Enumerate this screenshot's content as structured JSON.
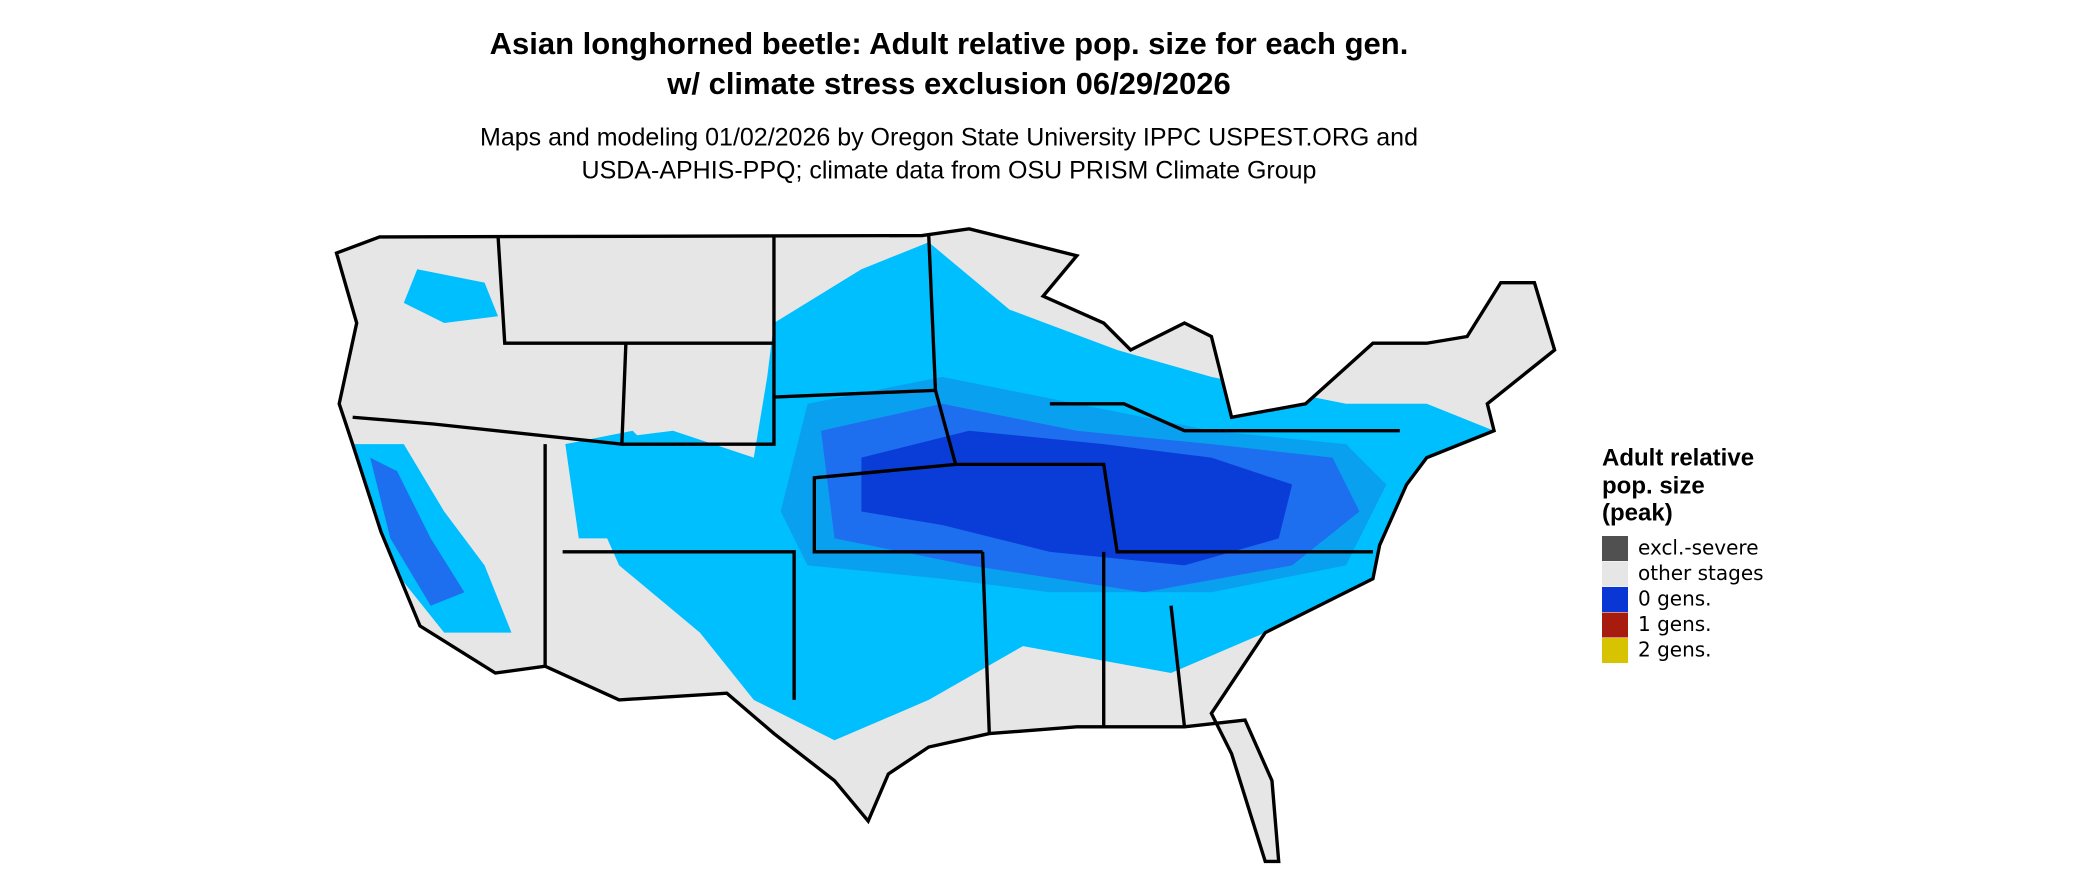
{
  "title": [
    "Asian longhorned beetle: Adult relative pop. size for each gen.",
    "w/ climate stress exclusion 06/29/2026"
  ],
  "subtitle": [
    "Maps and modeling 01/02/2026 by Oregon State University IPPC USPEST.ORG and",
    "USDA-APHIS-PPQ; climate data from OSU PRISM Climate Group"
  ],
  "legend": {
    "title": [
      "Adult relative",
      "pop. size",
      "(peak)"
    ],
    "items": [
      {
        "label": "excl.-severe",
        "color": "#505050"
      },
      {
        "label": "other stages",
        "color": "#e6e6e6"
      },
      {
        "label": "0 gens.",
        "color": "#0a36d6"
      },
      {
        "label": "1 gens.",
        "color": "#a81c10"
      },
      {
        "label": "2 gens.",
        "color": "#d8c300"
      }
    ]
  }
}
